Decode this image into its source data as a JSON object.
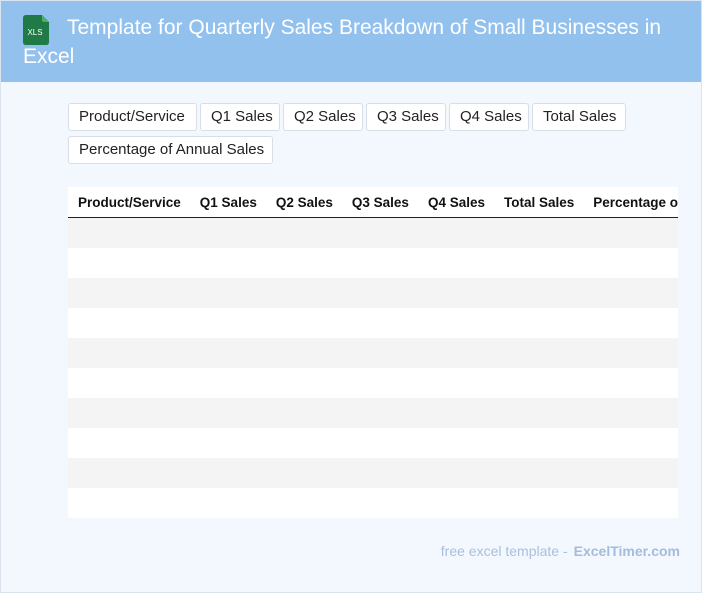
{
  "header": {
    "icon_text": "XLS",
    "title": "Template for Quarterly Sales Breakdown of Small Businesses in Excel"
  },
  "chips": [
    "Product/Service",
    "Q1 Sales",
    "Q2 Sales",
    "Q3 Sales",
    "Q4 Sales",
    "Total Sales",
    "Percentage of Annual Sales"
  ],
  "table": {
    "columns": [
      "Product/Service",
      "Q1 Sales",
      "Q2 Sales",
      "Q3 Sales",
      "Q4 Sales",
      "Total Sales",
      "Percentage of Annual Sales"
    ],
    "row_count": 10
  },
  "footer": {
    "text": "free excel template -",
    "brand": "ExcelTimer.com"
  },
  "colors": {
    "header_bg": "#93c1ed",
    "page_bg": "#f3f8ff",
    "excel_green": "#1f7a45"
  }
}
